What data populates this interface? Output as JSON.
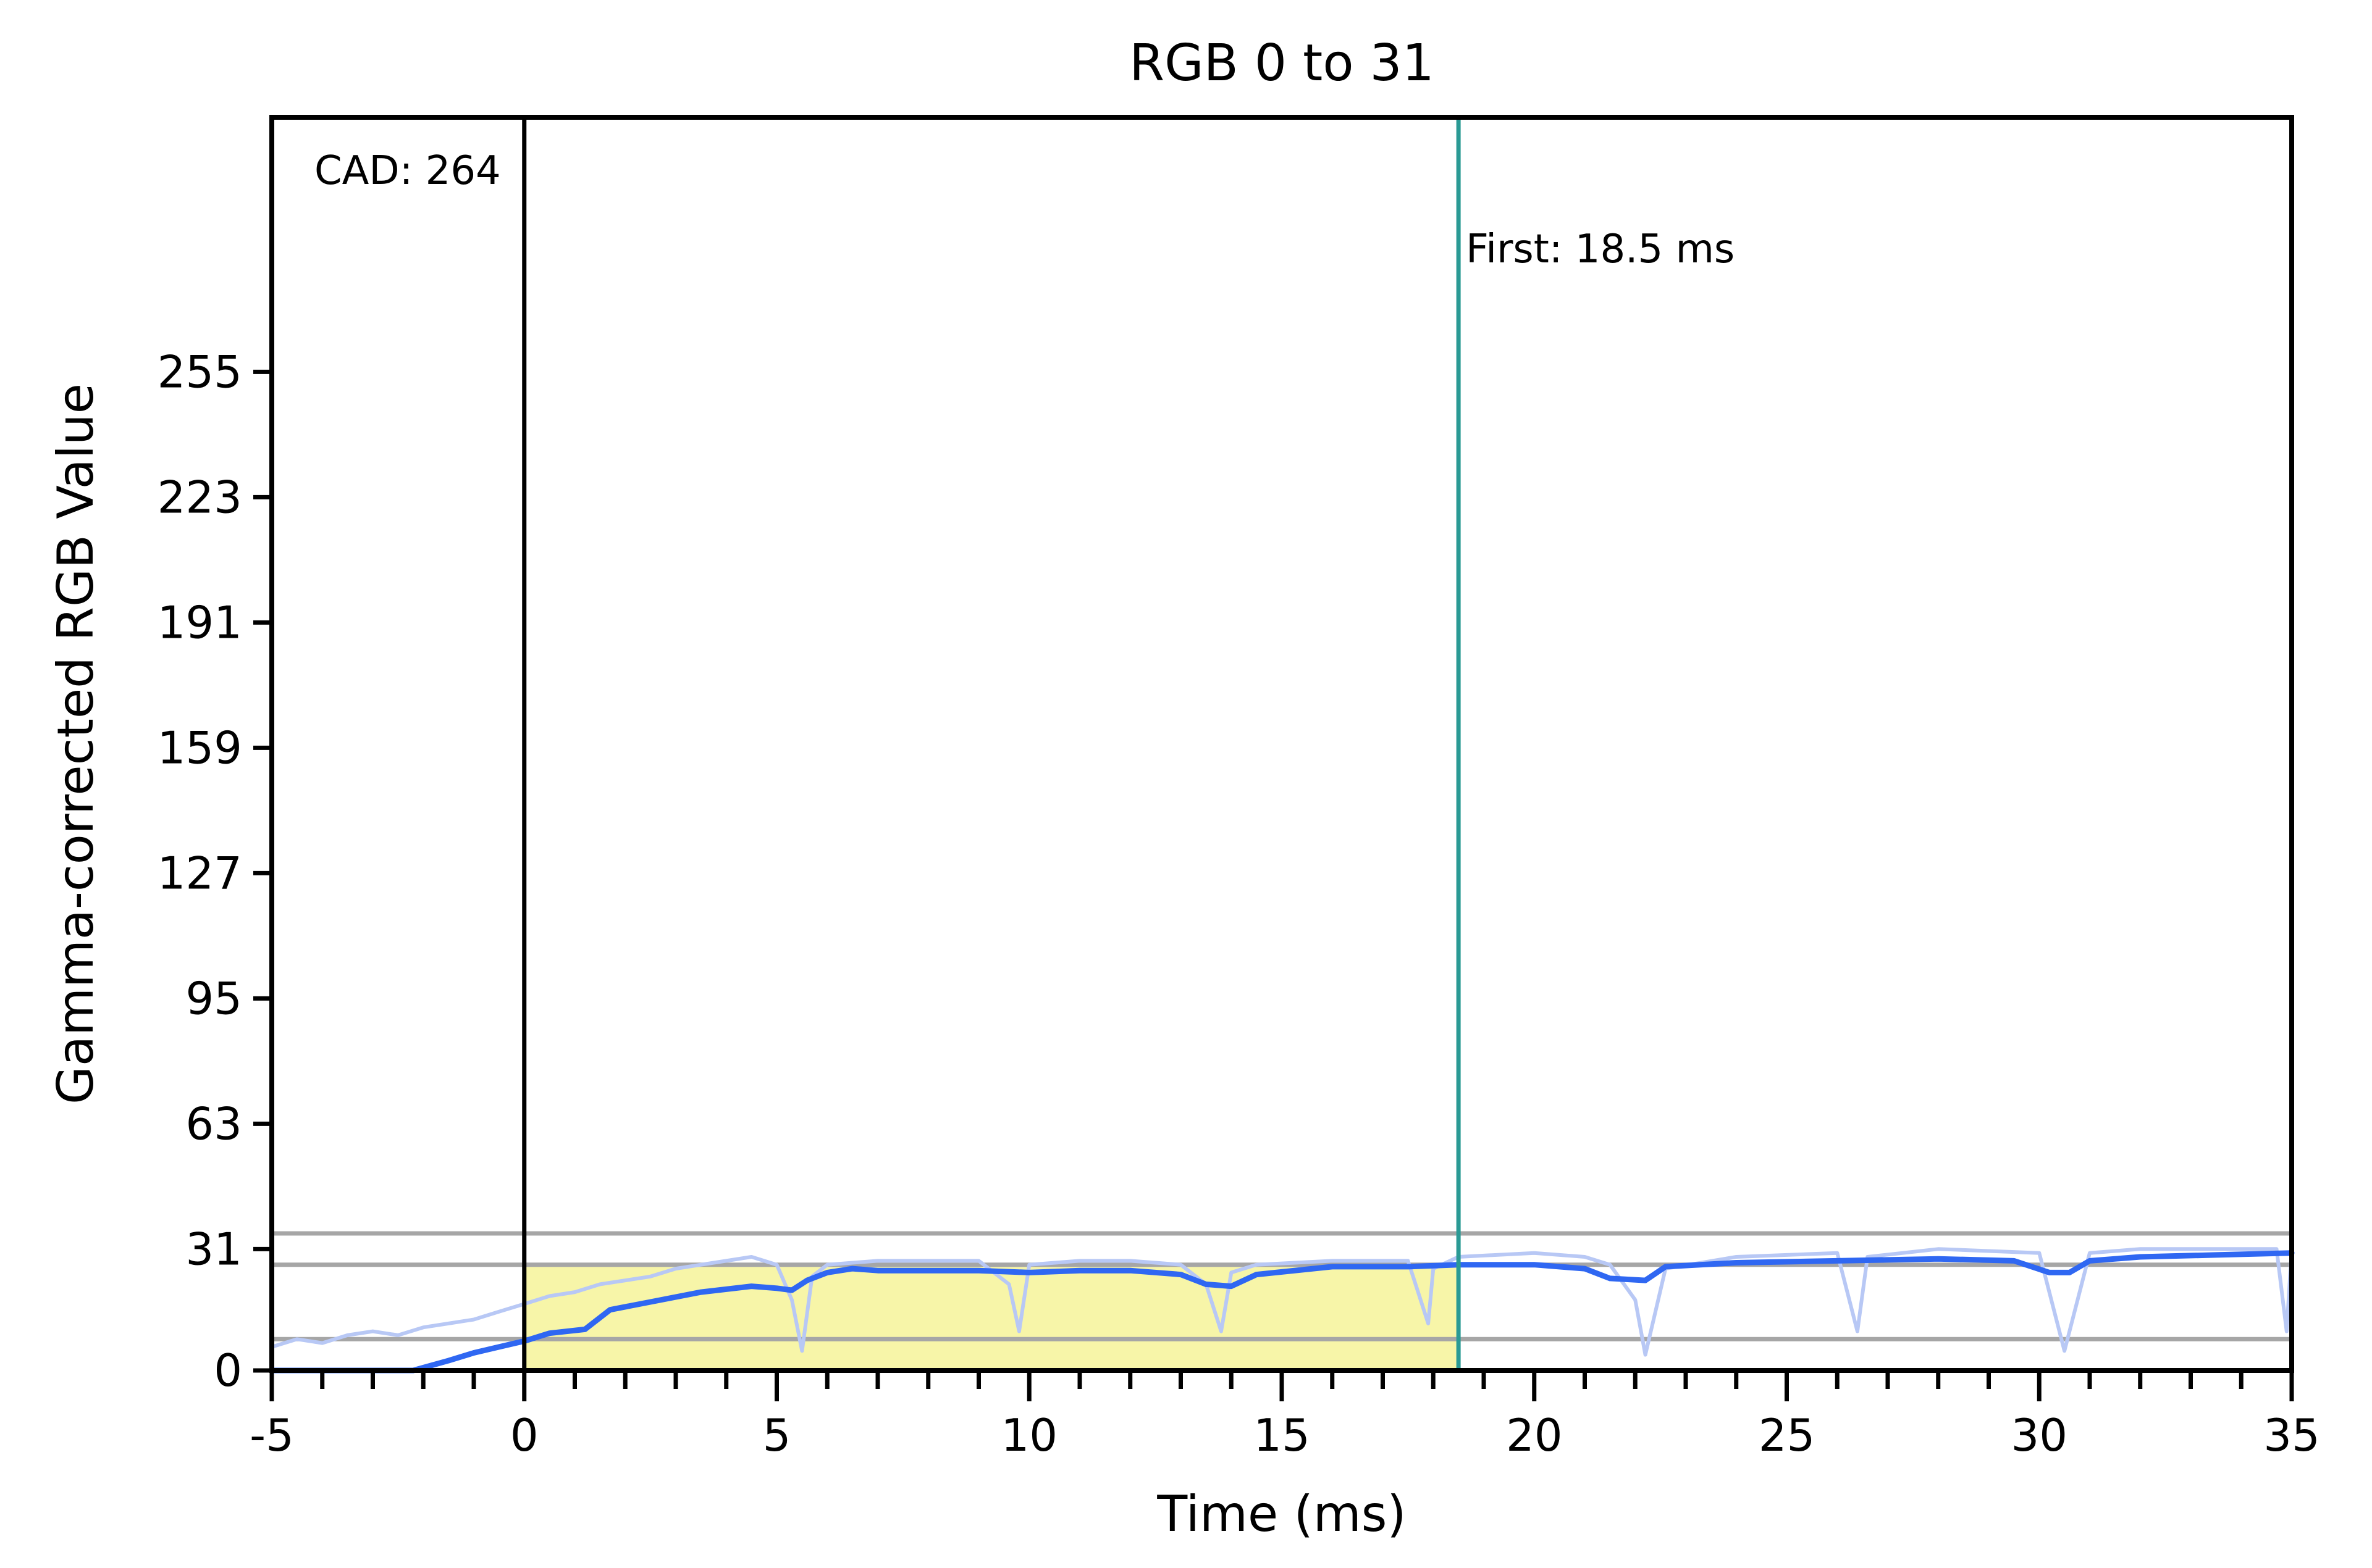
{
  "chart_data": {
    "type": "line",
    "title": "RGB 0 to 31",
    "xlabel": "Time (ms)",
    "ylabel": "Gamma-corrected RGB Value",
    "xlim": [
      -5,
      35
    ],
    "ylim": [
      0,
      320
    ],
    "x_ticks": [
      -5,
      0,
      5,
      10,
      15,
      20,
      25,
      30,
      35
    ],
    "x_tick_labels": [
      "-5",
      "0",
      "5",
      "10",
      "15",
      "20",
      "25",
      "30",
      "35"
    ],
    "y_ticks": [
      0,
      31,
      63,
      95,
      127,
      159,
      191,
      223,
      255
    ],
    "y_tick_labels": [
      "0",
      "31",
      "63",
      "95",
      "127",
      "159",
      "191",
      "223",
      "255"
    ],
    "grid": false,
    "reference_lines": [
      {
        "orientation": "horizontal",
        "y": 35,
        "color": "#a6a6a6"
      },
      {
        "orientation": "horizontal",
        "y": 27,
        "color": "#a6a6a6"
      },
      {
        "orientation": "horizontal",
        "y": 8,
        "color": "#a6a6a6"
      }
    ],
    "markers": [
      {
        "orientation": "vertical",
        "x": 0,
        "color": "#000000",
        "label": "CAD: 264"
      },
      {
        "orientation": "vertical",
        "x": 18.5,
        "color": "#2a9a95",
        "label": "First: 18.5 ms"
      }
    ],
    "highlight_region": {
      "x": [
        0,
        18.5
      ],
      "y_top": 27,
      "color": "#f7f5a8"
    },
    "series": [
      {
        "role": "smoothed",
        "color": "#2f67f2",
        "x": [
          -5,
          -2.2,
          -1.5,
          -1,
          -0.5,
          0,
          0.5,
          1.2,
          1.7,
          2.5,
          3.5,
          4.5,
          5,
          5.3,
          5.6,
          6,
          6.5,
          7,
          9,
          10,
          11,
          12,
          13,
          13.5,
          14,
          14.5,
          16,
          17.5,
          18.5,
          20,
          21,
          21.5,
          22.2,
          22.6,
          24,
          26,
          28,
          29.5,
          30.2,
          30.6,
          31,
          32,
          33.5,
          35
        ],
        "y": [
          0,
          0,
          2.5,
          4.5,
          6,
          7.5,
          9.5,
          10.5,
          15.5,
          17.5,
          20,
          21.5,
          21,
          20.5,
          23,
          25,
          26,
          25.5,
          25.5,
          25,
          25.5,
          25.5,
          24.5,
          22,
          21.5,
          24.5,
          26.5,
          26.5,
          27,
          27,
          26,
          23.5,
          23,
          26.5,
          27.5,
          28,
          28.5,
          28,
          25,
          25,
          28,
          29,
          29.5,
          30
        ]
      },
      {
        "role": "raw",
        "color": "#b8c8f5",
        "x": [
          -5,
          -4.5,
          -4,
          -3.5,
          -3,
          -2.5,
          -2,
          -1.5,
          -1,
          -0.5,
          0,
          0.5,
          1,
          1.5,
          2,
          2.5,
          3,
          3.5,
          4,
          4.5,
          5,
          5.3,
          5.5,
          5.7,
          6,
          7,
          8,
          9,
          9.6,
          9.8,
          10,
          11,
          12,
          13,
          13.5,
          13.8,
          14,
          14.5,
          16,
          17.5,
          17.9,
          18,
          18.5,
          20,
          21,
          21.5,
          22,
          22.2,
          22.6,
          24,
          26,
          26.4,
          26.6,
          28,
          30,
          30.5,
          31,
          32,
          33.5,
          34.7,
          34.9,
          35
        ],
        "y": [
          6,
          8,
          7,
          9,
          10,
          9,
          11,
          12,
          13,
          15,
          17,
          19,
          20,
          22,
          23,
          24,
          26,
          27,
          28,
          29,
          27,
          18,
          5,
          24,
          27,
          28,
          28,
          28,
          22,
          10,
          27,
          28,
          28,
          27,
          22,
          10,
          25,
          27,
          28,
          28,
          12,
          26,
          29,
          30,
          29,
          27,
          18,
          4,
          26,
          29,
          30,
          10,
          29,
          31,
          30,
          5,
          30,
          31,
          31,
          31,
          10,
          31
        ]
      }
    ]
  }
}
